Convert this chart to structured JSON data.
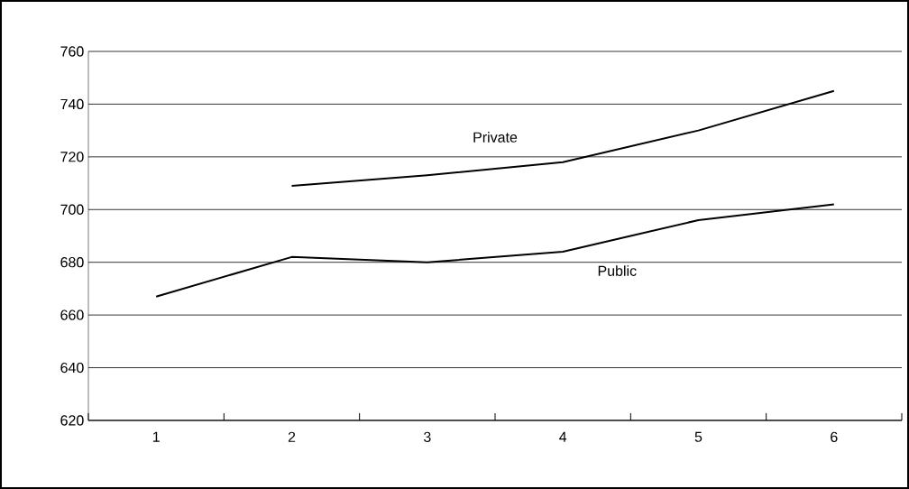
{
  "chart_data": {
    "type": "line",
    "categories": [
      "1",
      "2",
      "3",
      "4",
      "5",
      "6"
    ],
    "series": [
      {
        "name": "Private",
        "color": "#000000",
        "values": [
          null,
          709,
          713,
          718,
          730,
          745
        ]
      },
      {
        "name": "Public",
        "color": "#000000",
        "values": [
          667,
          682,
          680,
          684,
          696,
          702
        ]
      }
    ],
    "ylim": [
      620,
      760
    ],
    "yticks": [
      620,
      640,
      660,
      680,
      700,
      720,
      740,
      760
    ],
    "grid": "y",
    "legend": false
  }
}
